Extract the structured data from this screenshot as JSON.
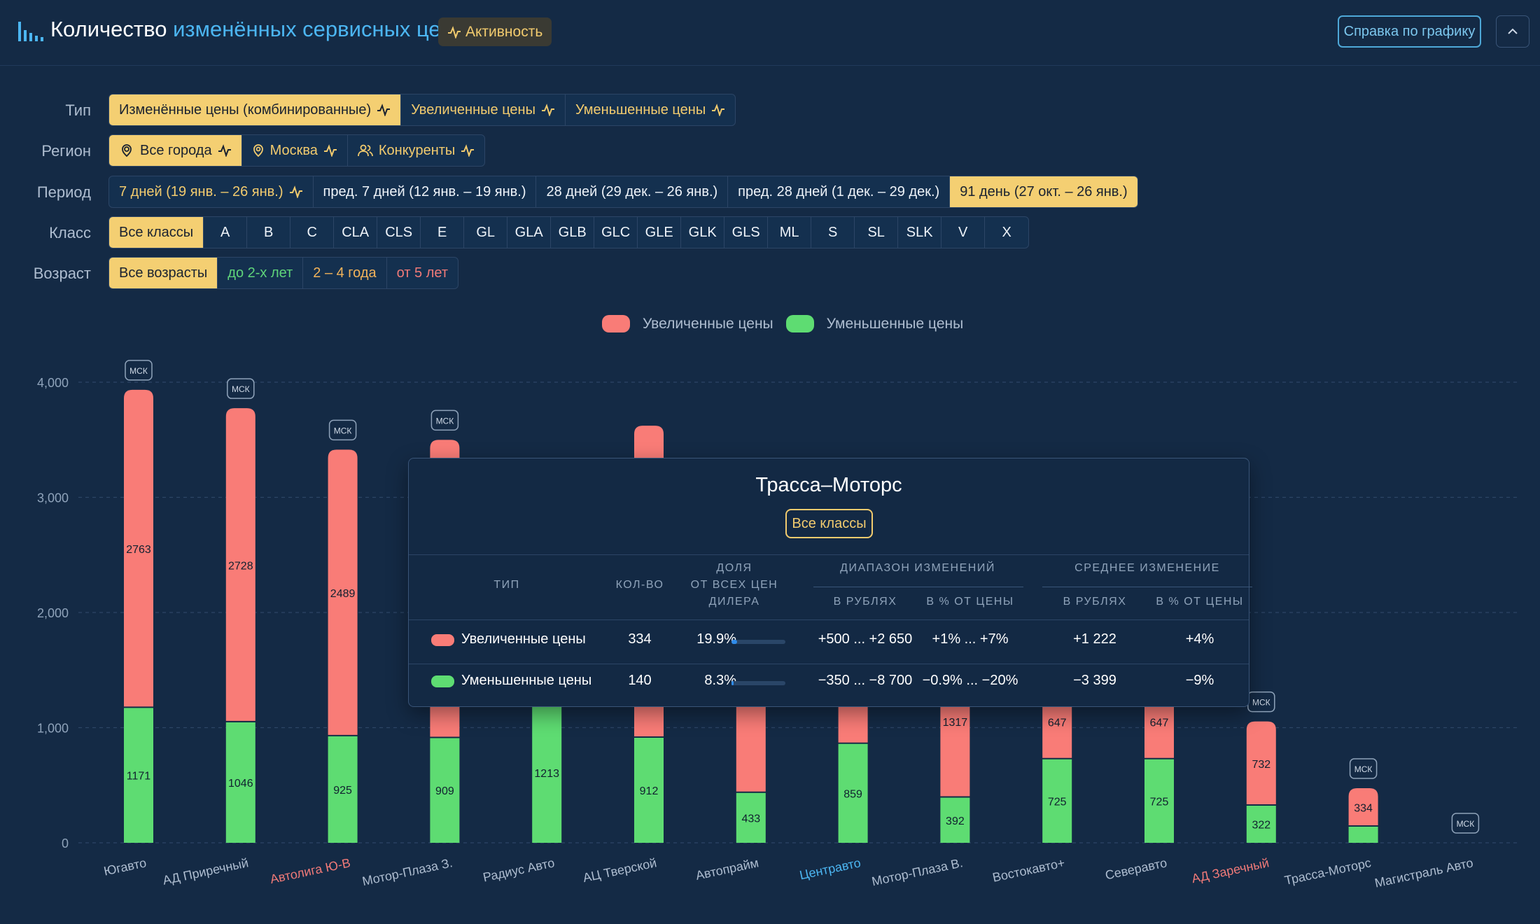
{
  "header": {
    "title_part1": "Количество",
    "title_part2": "изменённых сервисных цен",
    "activity_label": "Активность",
    "help_label": "Справка по графику"
  },
  "filters": {
    "type": {
      "label": "Тип",
      "options": [
        "Изменённые цены (комбинированные)",
        "Увеличенные цены",
        "Уменьшенные цены"
      ],
      "selected": "Изменённые цены (комбинированные)"
    },
    "region": {
      "label": "Регион",
      "options": [
        "Все города",
        "Москва",
        "Конкуренты"
      ],
      "selected": "Все города"
    },
    "period": {
      "label": "Период",
      "options": [
        "7 дней (19 янв. – 26 янв.)",
        "пред. 7 дней (12 янв. – 19 янв.)",
        "28 дней (29 дек. – 26 янв.)",
        "пред. 28 дней (1 дек. – 29 дек.)",
        "91 день (27 окт. – 26 янв.)"
      ],
      "selected": "91 день (27 окт. – 26 янв.)"
    },
    "class": {
      "label": "Класс",
      "options": [
        "Все классы",
        "A",
        "B",
        "C",
        "CLA",
        "CLS",
        "E",
        "GL",
        "GLA",
        "GLB",
        "GLC",
        "GLE",
        "GLK",
        "GLS",
        "ML",
        "S",
        "SL",
        "SLK",
        "V",
        "X"
      ],
      "selected": "Все классы"
    },
    "age": {
      "label": "Возраст",
      "options": [
        "Все возрасты",
        "до 2-х лет",
        "2 – 4 года",
        "от 5 лет"
      ],
      "selected": "Все возрасты"
    }
  },
  "legend": {
    "increased": "Увеличенные цены",
    "decreased": "Уменьшенные цены"
  },
  "colors": {
    "increased": "#f97c77",
    "decreased": "#5edc72",
    "accent": "#f4cf72",
    "link_blue": "#4cb6f2",
    "highlight_red": "#f07a78"
  },
  "chart_data": {
    "type": "bar",
    "stacked": true,
    "ylim": [
      0,
      4000
    ],
    "yticks": [
      "0",
      "1,000",
      "2,000",
      "3,000",
      "4,000"
    ],
    "grid": true,
    "legend_position": "top-center",
    "categories": [
      "Югавто",
      "АД Приречный",
      "Автолига Ю-В",
      "Мотор-Плаза З.",
      "Радиус Авто",
      "АЦ Тверской",
      "Автопрайм",
      "Центравто",
      "Мотор-Плаза В.",
      "Востокавто+",
      "Северавто",
      "АД Заречный",
      "Трасса-Моторс",
      "Магистраль Авто"
    ],
    "category_highlight": [
      "",
      "",
      "red",
      "",
      "",
      "",
      "",
      "blue",
      "",
      "",
      "",
      "red",
      "",
      ""
    ],
    "msk_badge_text": "МСК",
    "msk_badge": [
      true,
      true,
      true,
      true,
      false,
      false,
      false,
      false,
      false,
      false,
      false,
      true,
      true,
      true
    ],
    "series": [
      {
        "name": "Уменьшенные цены",
        "values": [
          1171,
          1046,
          925,
          909,
          1213,
          912,
          433,
          859,
          392,
          725,
          725,
          322,
          140,
          0
        ],
        "labels": [
          "1171",
          "1046",
          "925",
          "909",
          "1213",
          "912",
          "433",
          "859",
          "392",
          "725",
          "725",
          "322",
          "",
          ""
        ]
      },
      {
        "name": "Увеличенные цены",
        "values": [
          2763,
          2728,
          2489,
          2590,
          1500,
          2710,
          2100,
          2300,
          1317,
          647,
          647,
          732,
          334,
          0
        ],
        "labels": [
          "2763",
          "2728",
          "2489",
          "",
          "",
          "",
          "",
          "",
          "1317",
          "647",
          "647",
          "732",
          "334",
          ""
        ]
      }
    ]
  },
  "tooltip": {
    "title": "Трасса–Моторс",
    "badge": "Все классы",
    "headers": {
      "type": "ТИП",
      "count": "КОЛ-ВО",
      "share_l1": "ДОЛЯ",
      "share_l2": "ОТ ВСЕХ ЦЕН",
      "share_l3": "ДИЛЕРА",
      "range": "ДИАПАЗОН ИЗМЕНЕНИЙ",
      "range_rub": "В РУБЛЯХ",
      "range_pct": "В % ОТ ЦЕНЫ",
      "avg": "СРЕДНЕЕ ИЗМЕНЕНИЕ",
      "avg_rub": "В РУБЛЯХ",
      "avg_pct": "В % ОТ ЦЕНЫ"
    },
    "rows": [
      {
        "type": "Увеличенные цены",
        "count": "334",
        "share": "19.9%",
        "share_value": 0.199,
        "range_rub": "+500 ... +2 650",
        "range_pct": "+1% ... +7%",
        "avg_rub": "+1 222",
        "avg_pct": "+4%"
      },
      {
        "type": "Уменьшенные цены",
        "count": "140",
        "share": "8.3%",
        "share_value": 0.083,
        "range_rub": "−350 ... −8 700",
        "range_pct": "−0.9% ... −20%",
        "avg_rub": "−3 399",
        "avg_pct": "−9%"
      }
    ]
  }
}
